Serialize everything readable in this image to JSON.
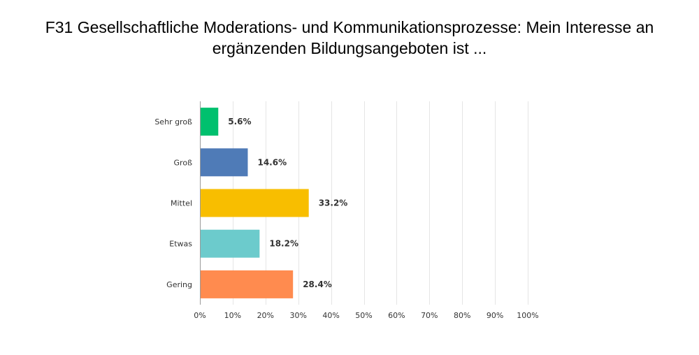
{
  "chart_data": {
    "type": "bar",
    "orientation": "horizontal",
    "title": "F31 Gesellschaftliche Moderations- und Kommunikationsprozesse: Mein Interesse an ergänzenden Bildungsangeboten ist ...",
    "categories": [
      "Sehr groß",
      "Groß",
      "Mittel",
      "Etwas",
      "Gering"
    ],
    "values": [
      5.6,
      14.6,
      33.2,
      18.2,
      28.4
    ],
    "value_labels": [
      "5.6%",
      "14.6%",
      "33.2%",
      "18.2%",
      "28.4%"
    ],
    "colors": [
      "#00c06e",
      "#4f7bb7",
      "#f8be00",
      "#6ccbcc",
      "#ff8b4f"
    ],
    "xlim": [
      0,
      100
    ],
    "xticks": [
      0,
      10,
      20,
      30,
      40,
      50,
      60,
      70,
      80,
      90,
      100
    ],
    "xtick_labels": [
      "0%",
      "10%",
      "20%",
      "30%",
      "40%",
      "50%",
      "60%",
      "70%",
      "80%",
      "90%",
      "100%"
    ],
    "grid": true
  }
}
